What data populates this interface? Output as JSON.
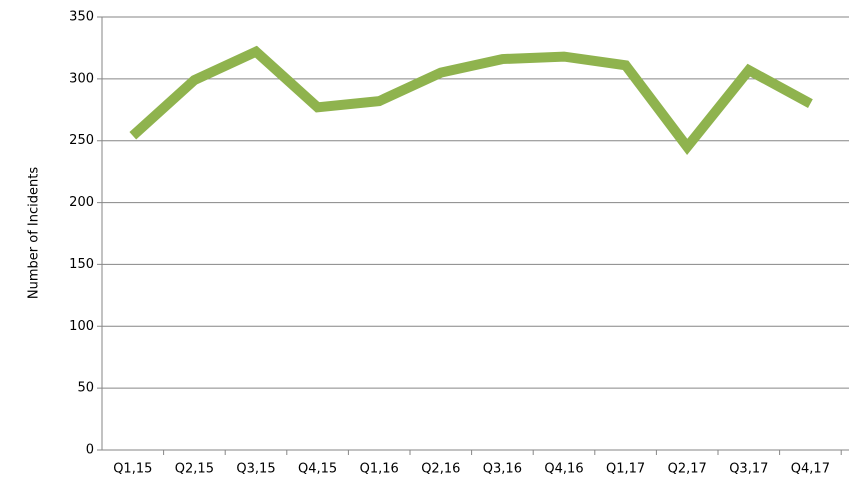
{
  "chart_data": {
    "type": "line",
    "y_label": "Number of Incidents",
    "categories": [
      "Q1,15",
      "Q2,15",
      "Q3,15",
      "Q4,15",
      "Q1,16",
      "Q2,16",
      "Q3,16",
      "Q4,16",
      "Q1,17",
      "Q2,17",
      "Q3,17",
      "Q4,17"
    ],
    "series": [
      {
        "name": "Incidents",
        "color": "#8fb34e",
        "values": [
          254,
          299,
          322,
          277,
          282,
          305,
          316,
          318,
          311,
          245,
          307,
          280
        ]
      }
    ],
    "ylim": [
      0,
      350
    ],
    "yticks": [
      0,
      50,
      100,
      150,
      200,
      250,
      300,
      350
    ],
    "grid": true
  }
}
